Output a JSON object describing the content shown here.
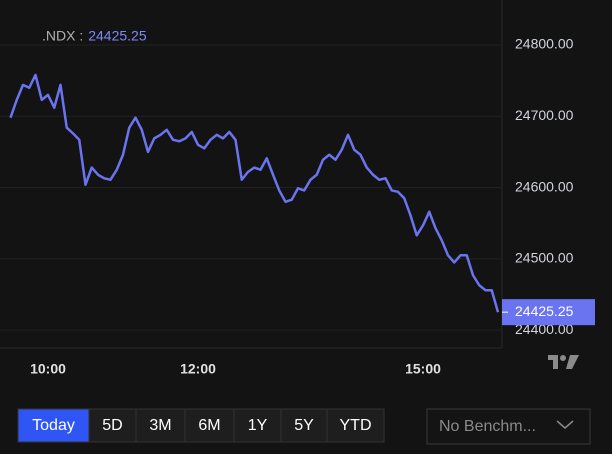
{
  "header": {
    "symbol_label": ".NDX :"
  },
  "chart_data": {
    "type": "line",
    "color": "#6b74f0",
    "categories": [
      null,
      null,
      null,
      null,
      null,
      null,
      "10:00",
      null,
      null,
      null,
      null,
      null,
      null,
      null,
      null,
      null,
      null,
      null,
      null,
      null,
      null,
      null,
      null,
      null,
      null,
      null,
      null,
      null,
      null,
      null,
      "12:00",
      null,
      null,
      null,
      null,
      null,
      null,
      null,
      null,
      null,
      null,
      null,
      null,
      null,
      null,
      null,
      null,
      null,
      null,
      null,
      null,
      null,
      null,
      null,
      null,
      null,
      null,
      null,
      null,
      null,
      null,
      null,
      null,
      null,
      null,
      null,
      "15:00",
      null,
      null,
      null,
      null,
      null,
      null,
      null,
      null,
      null,
      null,
      null,
      null
    ],
    "values": [
      24698,
      24723,
      24744,
      24740,
      24758,
      24723,
      24730,
      24712,
      24744,
      24684,
      24676,
      24667,
      24604,
      24628,
      24618,
      24613,
      24611,
      24625,
      24646,
      24684,
      24698,
      24681,
      24650,
      24669,
      24674,
      24681,
      24667,
      24665,
      24669,
      24678,
      24660,
      24655,
      24667,
      24674,
      24669,
      24678,
      24667,
      24611,
      24622,
      24628,
      24625,
      24641,
      24618,
      24596,
      24580,
      24583,
      24599,
      24596,
      24611,
      24618,
      24639,
      24646,
      24639,
      24653,
      24674,
      24653,
      24646,
      24628,
      24618,
      24611,
      24613,
      24596,
      24594,
      24585,
      24561,
      24533,
      24547,
      24566,
      24543,
      24526,
      24505,
      24495,
      24505,
      24505,
      24477,
      24463,
      24456,
      24456,
      24425.25
    ],
    "ylim": [
      24375,
      24835
    ],
    "yticks": [
      {
        "value": 24400,
        "label": "24400.00"
      },
      {
        "value": 24500,
        "label": "24500.00"
      },
      {
        "value": 24600,
        "label": "24600.00"
      },
      {
        "value": 24700,
        "label": "24700.00"
      },
      {
        "value": 24800,
        "label": "24800.00"
      }
    ],
    "grid": true
  },
  "controls": {
    "ranges": [
      "Today",
      "5D",
      "3M",
      "6M",
      "1Y",
      "5Y",
      "YTD"
    ],
    "selected": 0,
    "benchmark": "No Benchm..."
  }
}
